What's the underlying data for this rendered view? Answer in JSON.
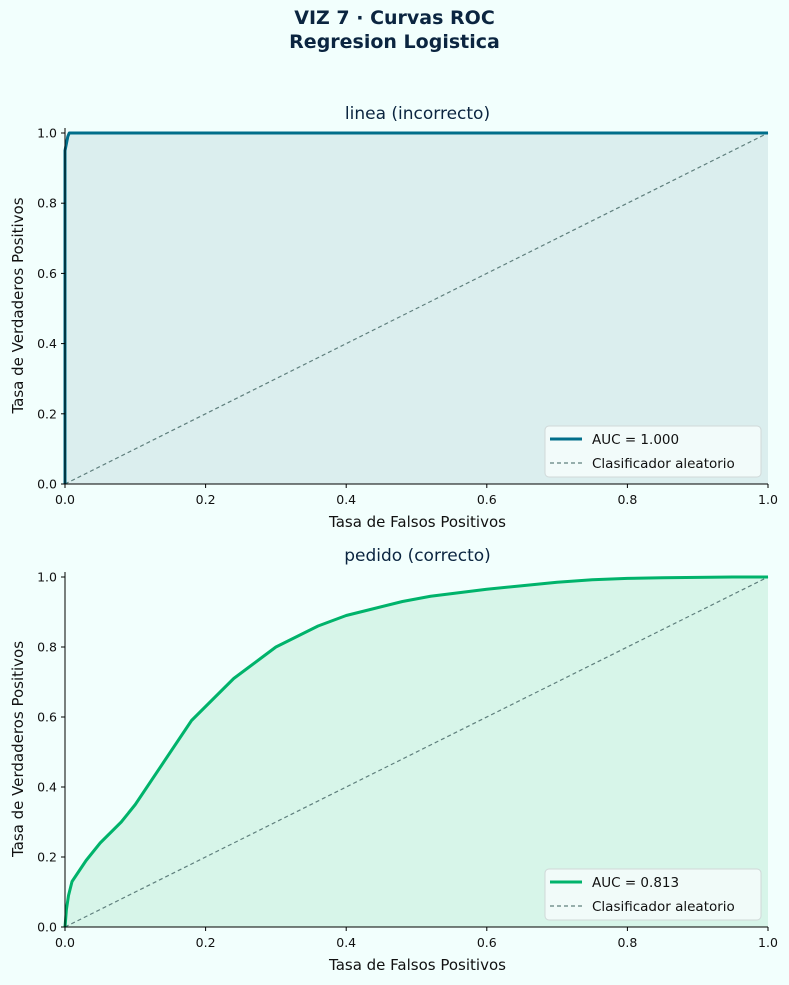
{
  "suptitle": {
    "line1": "VIZ 7 · Curvas ROC",
    "line2": "Regresion Logistica"
  },
  "colors": {
    "background": "#f2fffd",
    "random_line": "#5f7f7d"
  },
  "chart_data": [
    {
      "type": "line",
      "title": "linea (incorrecto)",
      "xlabel": "Tasa de Falsos Positivos",
      "ylabel": "Tasa de Verdaderos Positivos",
      "xlim": [
        0,
        1
      ],
      "ylim": [
        0,
        1
      ],
      "xticks": [
        "0.0",
        "0.2",
        "0.4",
        "0.6",
        "0.8",
        "1.0"
      ],
      "yticks": [
        "0.0",
        "0.2",
        "0.4",
        "0.6",
        "0.8",
        "1.0"
      ],
      "grid": false,
      "legend_position": "bottom-right",
      "area_fill": true,
      "color": "#006e8a",
      "fill_color": "#dbeeee",
      "series": [
        {
          "name": "AUC = 1.000",
          "x": [
            0,
            0,
            0.002,
            0.004,
            0.006,
            0.01,
            1.0
          ],
          "y": [
            0,
            0.95,
            0.97,
            0.99,
            1.0,
            1.0,
            1.0
          ]
        },
        {
          "name": "Clasificador aleatorio",
          "x": [
            0,
            1
          ],
          "y": [
            0,
            1
          ],
          "dashed": true
        }
      ]
    },
    {
      "type": "line",
      "title": "pedido (correcto)",
      "xlabel": "Tasa de Falsos Positivos",
      "ylabel": "Tasa de Verdaderos Positivos",
      "xlim": [
        0,
        1
      ],
      "ylim": [
        0,
        1
      ],
      "xticks": [
        "0.0",
        "0.2",
        "0.4",
        "0.6",
        "0.8",
        "1.0"
      ],
      "yticks": [
        "0.0",
        "0.2",
        "0.4",
        "0.6",
        "0.8",
        "1.0"
      ],
      "grid": false,
      "legend_position": "bottom-right",
      "area_fill": true,
      "color": "#00b36b",
      "fill_color": "#d7f5e9",
      "series": [
        {
          "name": "AUC = 0.813",
          "x": [
            0,
            0.002,
            0.005,
            0.01,
            0.02,
            0.03,
            0.05,
            0.08,
            0.1,
            0.12,
            0.14,
            0.16,
            0.18,
            0.2,
            0.22,
            0.24,
            0.26,
            0.28,
            0.3,
            0.33,
            0.36,
            0.4,
            0.44,
            0.48,
            0.52,
            0.56,
            0.6,
            0.65,
            0.7,
            0.75,
            0.8,
            0.85,
            0.9,
            0.95,
            1.0
          ],
          "y": [
            0,
            0.05,
            0.09,
            0.13,
            0.16,
            0.19,
            0.24,
            0.3,
            0.35,
            0.41,
            0.47,
            0.53,
            0.59,
            0.63,
            0.67,
            0.71,
            0.74,
            0.77,
            0.8,
            0.83,
            0.86,
            0.89,
            0.91,
            0.93,
            0.945,
            0.955,
            0.965,
            0.975,
            0.985,
            0.992,
            0.996,
            0.998,
            0.999,
            1.0,
            1.0
          ]
        },
        {
          "name": "Clasificador aleatorio",
          "x": [
            0,
            1
          ],
          "y": [
            0,
            1
          ],
          "dashed": true
        }
      ]
    }
  ]
}
